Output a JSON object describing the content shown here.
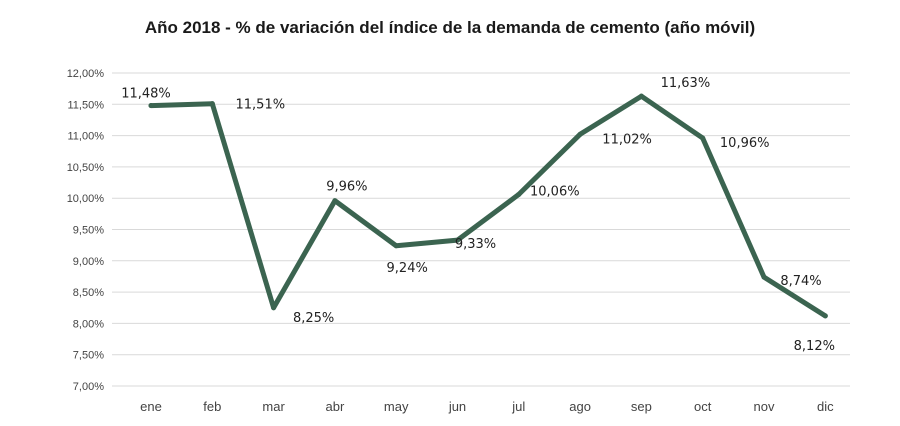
{
  "chart_data": {
    "type": "line",
    "title": "Año 2018 - % de variación del índice de la demanda de cemento (año móvil)",
    "xlabel": "",
    "ylabel": "",
    "categories": [
      "ene",
      "feb",
      "mar",
      "abr",
      "may",
      "jun",
      "jul",
      "ago",
      "sep",
      "oct",
      "nov",
      "dic"
    ],
    "series": [
      {
        "values": [
          11.48,
          11.51,
          8.25,
          9.96,
          9.24,
          9.33,
          10.06,
          11.02,
          11.63,
          10.96,
          8.74,
          8.12
        ],
        "labels": [
          "11,48%",
          "11,51%",
          "8,25%",
          "9,96%",
          "9,24%",
          "9,33%",
          "10,06%",
          "11,02%",
          "11,63%",
          "10,96%",
          "8,74%",
          "8,12%"
        ]
      }
    ],
    "ylim": [
      7.0,
      12.0
    ],
    "yticks": [
      7.0,
      7.5,
      8.0,
      8.5,
      9.0,
      9.5,
      10.0,
      10.5,
      11.0,
      11.5,
      12.0
    ],
    "ytick_labels": [
      "7,00%",
      "7,50%",
      "8,00%",
      "8,50%",
      "9,00%",
      "9,50%",
      "10,00%",
      "10,50%",
      "11,00%",
      "11,50%",
      "12,00%"
    ],
    "grid": true,
    "legend": "none",
    "line_color": "#3b6450",
    "grid_color": "#d9d9d9"
  }
}
